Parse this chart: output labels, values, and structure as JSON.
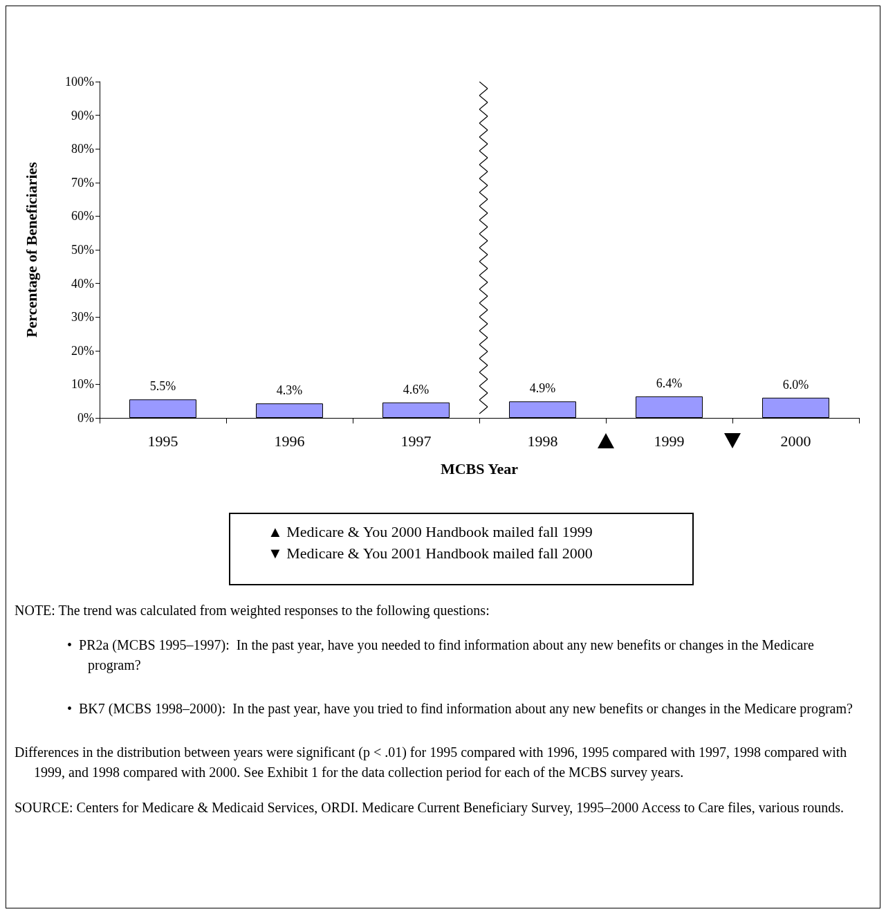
{
  "chart_data": {
    "type": "bar",
    "categories": [
      "1995",
      "1996",
      "1997",
      "1998",
      "1999",
      "2000"
    ],
    "values": [
      5.5,
      4.3,
      4.6,
      4.9,
      6.4,
      6.0
    ],
    "value_labels": [
      "5.5%",
      "4.3%",
      "4.6%",
      "4.9%",
      "6.4%",
      "6.0%"
    ],
    "color": "#9999ff",
    "xlabel": "MCBS Year",
    "ylabel": "Percentage of Beneficiaries",
    "ylim": [
      0,
      100
    ],
    "yticks": [
      {
        "value": 0,
        "label": "0%"
      },
      {
        "value": 10,
        "label": "10%"
      },
      {
        "value": 20,
        "label": "20%"
      },
      {
        "value": 30,
        "label": "30%"
      },
      {
        "value": 40,
        "label": "40%"
      },
      {
        "value": 50,
        "label": "50%"
      },
      {
        "value": 60,
        "label": "60%"
      },
      {
        "value": 70,
        "label": "70%"
      },
      {
        "value": 80,
        "label": "80%"
      },
      {
        "value": 90,
        "label": "90%"
      },
      {
        "value": 100,
        "label": "100%"
      }
    ],
    "grid": false,
    "annotations": [
      "▲ Medicare & You 2000 Handbook mailed fall 1999",
      "▼ Medicare & You 2001 Handbook mailed fall 2000",
      "NOTE:  The trend was calculated from weighted responses to the following questions:",
      "•  PR2a (MCBS 1995–1997):  In the past year, have you needed to find information about any new benefits or changes in the Medicare program?",
      "•  BK7 (MCBS 1998–2000):  In the past year, have you tried to find information about any new benefits or changes in the Medicare program?",
      "Differences in the distribution between years were significant (p < .01) for 1995 compared with 1996, 1995 compared with 1997, 1998 compared with 1999, and 1998 compared with 2000.  See Exhibit 1 for the data collection period for each of the MCBS survey years.",
      "SOURCE:  Centers for Medicare & Medicaid Services, ORDI.  Medicare Current Beneficiary Survey, 1995–2000 Access to Care files, various rounds."
    ]
  }
}
